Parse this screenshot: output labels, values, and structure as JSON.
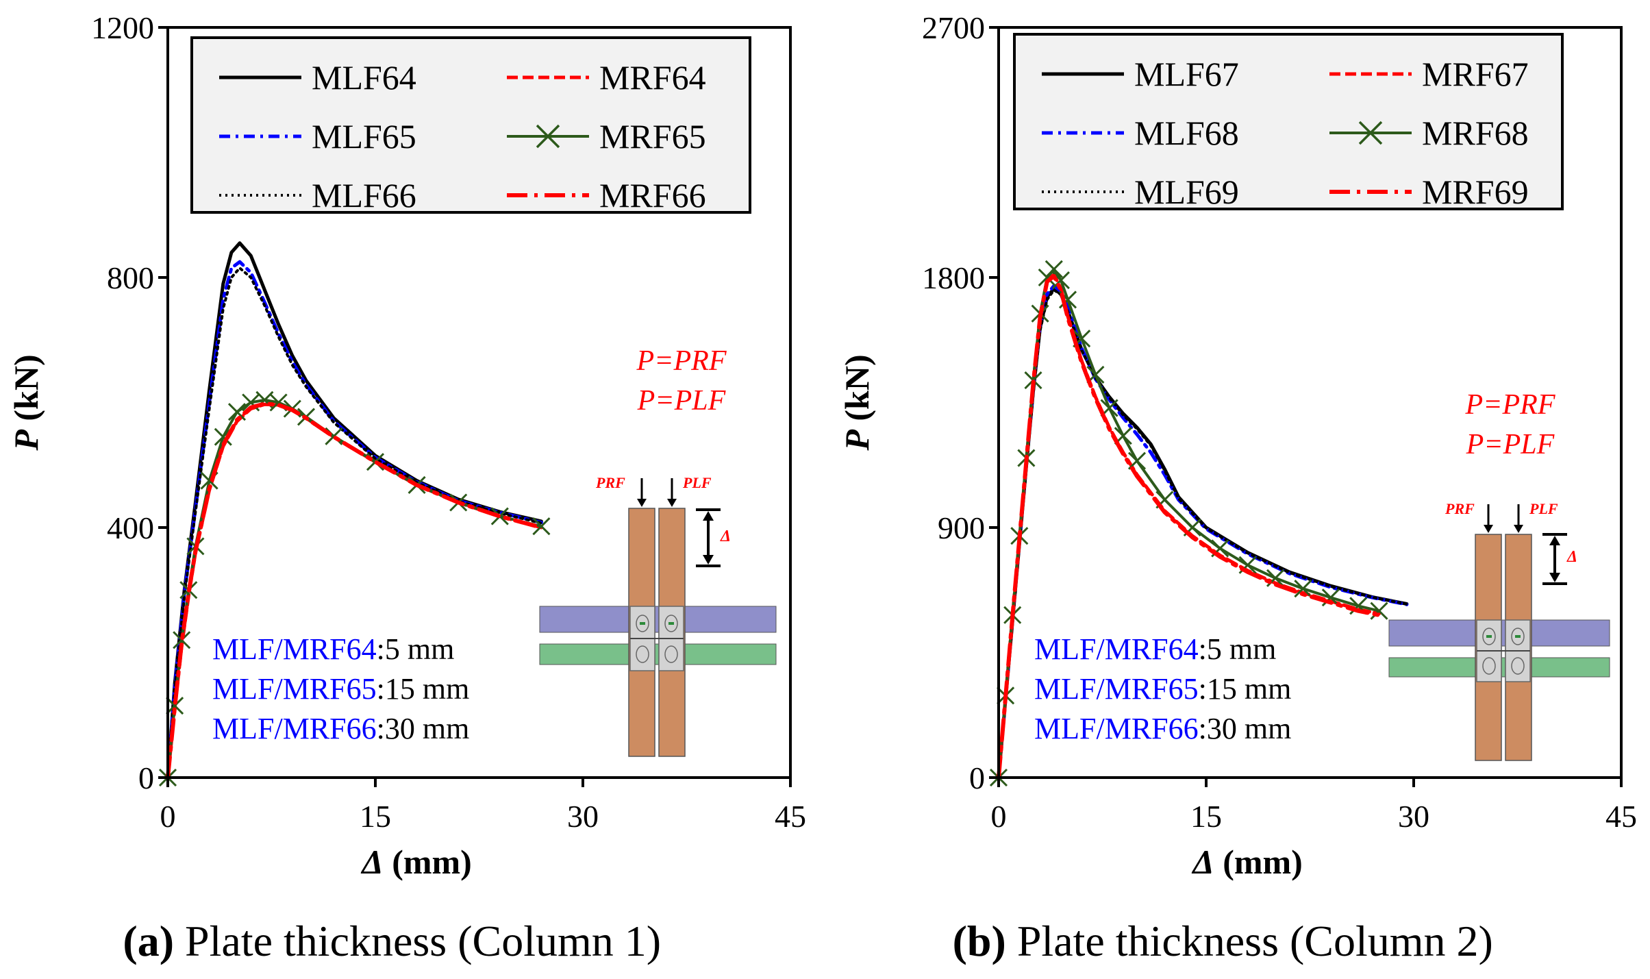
{
  "chart_data": [
    {
      "id": "a",
      "type": "line",
      "caption_letter": "(a)",
      "caption_text": "Plate thickness (Column 1)",
      "xlabel_sym": "Δ",
      "xlabel_unit": "(mm)",
      "ylabel_sym": "P",
      "ylabel_unit": "(kN)",
      "xlim": [
        0,
        45
      ],
      "ylim": [
        0,
        1200
      ],
      "xticks": [
        0,
        15,
        30,
        45
      ],
      "yticks": [
        0,
        400,
        800,
        1200
      ],
      "legend_placement": "top",
      "formula_lines": [
        "P=PRF",
        "P=PLF"
      ],
      "inset_labels": {
        "prf": "PRF",
        "plf": "PLF",
        "delta": "Δ"
      },
      "notes": [
        {
          "name": "MLF/MRF64",
          "value": ":5 mm"
        },
        {
          "name": "MLF/MRF65",
          "value": ":15 mm"
        },
        {
          "name": "MLF/MRF66",
          "value": ":30 mm"
        }
      ],
      "series": [
        {
          "name": "MLF64",
          "style": "solid",
          "color": "#000000",
          "x": [
            0,
            0.5,
            1.2,
            2,
            3,
            4,
            4.6,
            5.2,
            6,
            7,
            8,
            9,
            10,
            12,
            15,
            18,
            21,
            24,
            27
          ],
          "y": [
            0,
            150,
            300,
            440,
            620,
            790,
            840,
            855,
            835,
            780,
            725,
            675,
            635,
            575,
            515,
            475,
            445,
            425,
            410
          ]
        },
        {
          "name": "MLF65",
          "style": "dashdot",
          "color": "#0000ff",
          "x": [
            0,
            0.5,
            1.2,
            2,
            3,
            4,
            4.6,
            5.2,
            6,
            7,
            8,
            9,
            10,
            12,
            15,
            18,
            21,
            24,
            27
          ],
          "y": [
            0,
            145,
            295,
            430,
            600,
            765,
            815,
            825,
            808,
            760,
            710,
            665,
            628,
            570,
            512,
            473,
            443,
            424,
            408
          ]
        },
        {
          "name": "MLF66",
          "style": "dotted",
          "color": "#000000",
          "x": [
            0,
            0.5,
            1.2,
            2,
            3,
            4,
            4.6,
            5.2,
            6,
            7,
            8,
            9,
            10,
            12,
            15,
            18,
            21,
            24,
            27
          ],
          "y": [
            0,
            140,
            290,
            425,
            590,
            750,
            800,
            815,
            800,
            755,
            705,
            660,
            625,
            568,
            510,
            472,
            442,
            423,
            407
          ]
        },
        {
          "name": "MRF64",
          "style": "dashed",
          "color": "#ff0000",
          "x": [
            0,
            0.5,
            1,
            1.5,
            2,
            3,
            4,
            5,
            6,
            7,
            8,
            9,
            10,
            12,
            15,
            18,
            21,
            24,
            27
          ],
          "y": [
            0,
            110,
            210,
            290,
            360,
            460,
            530,
            570,
            590,
            597,
            596,
            588,
            575,
            545,
            505,
            468,
            440,
            418,
            400
          ]
        },
        {
          "name": "MRF65",
          "style": "cross",
          "color": "#2d5a1b",
          "x": [
            0,
            0.5,
            1,
            1.5,
            2,
            3,
            4,
            5,
            6,
            7,
            8,
            9,
            10,
            12,
            15,
            18,
            21,
            24,
            27
          ],
          "y": [
            0,
            115,
            220,
            300,
            370,
            475,
            545,
            585,
            600,
            604,
            600,
            590,
            577,
            546,
            505,
            468,
            440,
            418,
            402
          ]
        },
        {
          "name": "MRF66",
          "style": "longdashdot",
          "color": "#ff0000",
          "x": [
            0,
            0.5,
            1,
            1.5,
            2,
            3,
            4,
            5,
            6,
            7,
            8,
            9,
            10,
            12,
            15,
            18,
            21,
            24,
            27
          ],
          "y": [
            0,
            112,
            215,
            295,
            362,
            462,
            532,
            572,
            592,
            598,
            596,
            588,
            575,
            545,
            505,
            468,
            440,
            418,
            400
          ]
        }
      ]
    },
    {
      "id": "b",
      "type": "line",
      "caption_letter": "(b)",
      "caption_text": "Plate thickness (Column 2)",
      "xlabel_sym": "Δ",
      "xlabel_unit": "(mm)",
      "ylabel_sym": "P",
      "ylabel_unit": "(kN)",
      "xlim": [
        0,
        45
      ],
      "ylim": [
        0,
        2700
      ],
      "xticks": [
        0,
        15,
        30,
        45
      ],
      "yticks": [
        0,
        900,
        1800,
        2700
      ],
      "legend_placement": "top",
      "formula_lines": [
        "P=PRF",
        "P=PLF"
      ],
      "inset_labels": {
        "prf": "PRF",
        "plf": "PLF",
        "delta": "Δ"
      },
      "notes": [
        {
          "name": "MLF/MRF64",
          "value": ":5 mm"
        },
        {
          "name": "MLF/MRF65",
          "value": ":15 mm"
        },
        {
          "name": "MLF/MRF66",
          "value": ":30 mm"
        }
      ],
      "series": [
        {
          "name": "MLF67",
          "style": "solid",
          "color": "#000000",
          "x": [
            0,
            0.5,
            1,
            1.5,
            2,
            2.5,
            3,
            3.5,
            4,
            4.5,
            5,
            6,
            7,
            8,
            9,
            10,
            11,
            12,
            13,
            15,
            18,
            21,
            24,
            27,
            29.5
          ],
          "y": [
            0,
            280,
            560,
            840,
            1120,
            1390,
            1620,
            1730,
            1760,
            1740,
            1680,
            1540,
            1440,
            1370,
            1310,
            1260,
            1200,
            1110,
            1010,
            900,
            810,
            740,
            690,
            650,
            625
          ]
        },
        {
          "name": "MLF68",
          "style": "dashdot",
          "color": "#0000ff",
          "x": [
            0,
            0.5,
            1,
            1.5,
            2,
            2.5,
            3,
            3.5,
            4,
            4.5,
            5,
            6,
            7,
            8,
            9,
            10,
            11,
            12,
            13,
            15,
            18,
            21,
            24,
            27,
            29.5
          ],
          "y": [
            0,
            285,
            570,
            850,
            1130,
            1400,
            1630,
            1740,
            1770,
            1750,
            1690,
            1545,
            1435,
            1360,
            1295,
            1235,
            1170,
            1090,
            1000,
            895,
            805,
            735,
            685,
            648,
            623
          ]
        },
        {
          "name": "MLF69",
          "style": "dotted",
          "color": "#000000",
          "x": [
            0,
            0.5,
            1,
            1.5,
            2,
            2.5,
            3,
            3.5,
            4,
            4.5,
            5,
            6,
            7,
            8,
            9,
            10,
            11,
            12,
            13,
            15,
            18,
            21,
            24,
            27,
            29.5
          ],
          "y": [
            0,
            275,
            555,
            835,
            1110,
            1380,
            1610,
            1720,
            1755,
            1738,
            1678,
            1538,
            1438,
            1368,
            1305,
            1255,
            1195,
            1105,
            1005,
            898,
            808,
            738,
            688,
            649,
            624
          ]
        },
        {
          "name": "MRF67",
          "style": "dashed",
          "color": "#ff0000",
          "x": [
            0,
            0.5,
            1,
            1.5,
            2,
            2.5,
            3,
            3.5,
            4,
            4.5,
            5,
            6,
            7,
            8,
            9,
            10,
            12,
            14,
            16,
            18,
            20,
            22,
            24,
            26,
            27.5
          ],
          "y": [
            0,
            290,
            580,
            860,
            1140,
            1420,
            1660,
            1790,
            1810,
            1760,
            1660,
            1500,
            1370,
            1260,
            1170,
            1090,
            960,
            870,
            800,
            745,
            700,
            665,
            635,
            605,
            590
          ]
        },
        {
          "name": "MRF68",
          "style": "cross",
          "color": "#2d5a1b",
          "x": [
            0,
            0.5,
            1,
            1.5,
            2,
            2.5,
            3,
            3.5,
            4,
            4.5,
            5,
            6,
            7,
            8,
            9,
            10,
            12,
            14,
            16,
            18,
            20,
            22,
            24,
            26,
            27.5
          ],
          "y": [
            0,
            295,
            585,
            870,
            1150,
            1430,
            1670,
            1800,
            1830,
            1790,
            1720,
            1580,
            1450,
            1330,
            1230,
            1140,
            1000,
            900,
            825,
            765,
            718,
            680,
            648,
            618,
            600
          ]
        },
        {
          "name": "MRF69",
          "style": "longdashdot",
          "color": "#ff0000",
          "x": [
            0,
            0.5,
            1,
            1.5,
            2,
            2.5,
            3,
            3.5,
            4,
            4.5,
            5,
            6,
            7,
            8,
            9,
            10,
            12,
            14,
            16,
            18,
            20,
            22,
            24,
            26,
            27.5
          ],
          "y": [
            0,
            290,
            578,
            858,
            1138,
            1418,
            1658,
            1785,
            1805,
            1755,
            1655,
            1495,
            1365,
            1255,
            1165,
            1085,
            955,
            865,
            795,
            740,
            695,
            660,
            630,
            600,
            585
          ]
        }
      ]
    }
  ]
}
